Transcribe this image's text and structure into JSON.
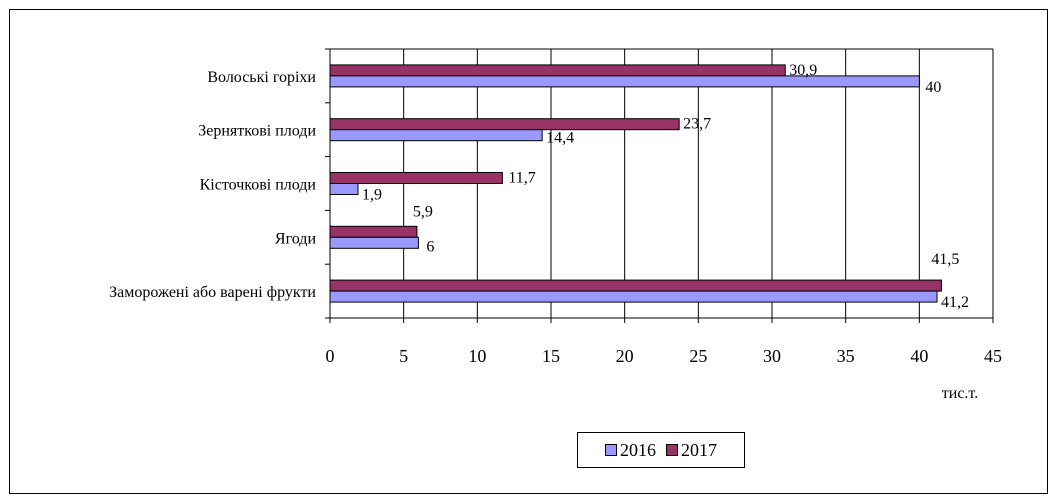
{
  "chart_data": {
    "type": "bar",
    "orientation": "horizontal",
    "categories": [
      "Волоські горіхи",
      "Зерняткові плоди",
      "Кісточкові плоди",
      "Ягоди",
      "Заморожені або варені фрукти"
    ],
    "series": [
      {
        "name": "2016",
        "color": "#9999ff",
        "values": [
          40,
          14.4,
          1.9,
          6,
          41.2
        ],
        "labels": [
          "40",
          "14,4",
          "1,9",
          "6",
          "41,2"
        ]
      },
      {
        "name": "2017",
        "color": "#993366",
        "values": [
          30.9,
          23.7,
          11.7,
          5.9,
          41.5
        ],
        "labels": [
          "30,9",
          "23,7",
          "11,7",
          "5,9",
          "41,5"
        ]
      }
    ],
    "xlim": [
      0,
      45
    ],
    "xticks": [
      "0",
      "5",
      "10",
      "15",
      "20",
      "25",
      "30",
      "35",
      "40",
      "45"
    ],
    "xlabel": "тис.т.",
    "grid": true,
    "legend_position": "bottom"
  }
}
